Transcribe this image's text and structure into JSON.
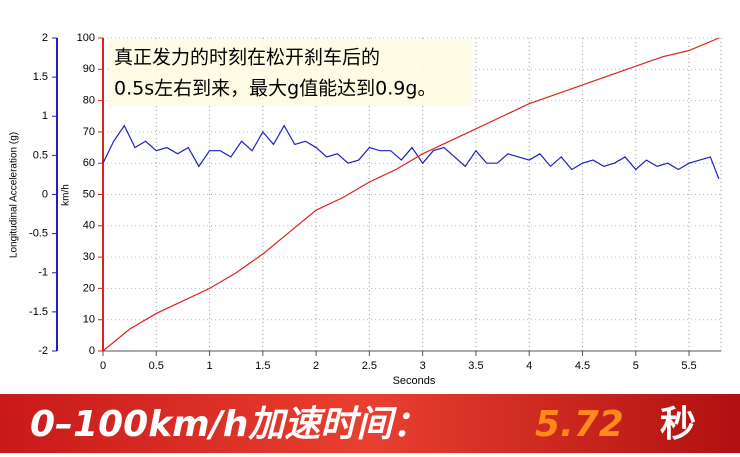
{
  "chart_data": {
    "type": "line",
    "x_label": "Seconds",
    "y_label": "Longitudinal Acceleration (g)",
    "y2_label": "km/h",
    "xlim": [
      0,
      5.8
    ],
    "xticks": [
      0,
      0.5,
      1,
      1.5,
      2,
      2.5,
      3,
      3.5,
      4,
      4.5,
      5,
      5.5
    ],
    "ylim": [
      -2,
      2
    ],
    "yticks": [
      -2,
      -1.5,
      -1,
      -0.5,
      0,
      0.5,
      1,
      1.5,
      2
    ],
    "y2lim": [
      0,
      100
    ],
    "y2ticks": [
      0,
      10,
      20,
      30,
      40,
      50,
      60,
      70,
      80,
      90,
      100
    ],
    "grid": true,
    "series": [
      {
        "color": "#2020c0",
        "axis": "y",
        "x": [
          0,
          0.1,
          0.2,
          0.3,
          0.4,
          0.5,
          0.6,
          0.7,
          0.8,
          0.9,
          1,
          1.1,
          1.2,
          1.3,
          1.4,
          1.5,
          1.6,
          1.7,
          1.8,
          1.9,
          2,
          2.1,
          2.2,
          2.3,
          2.4,
          2.5,
          2.6,
          2.7,
          2.8,
          2.9,
          3,
          3.1,
          3.2,
          3.3,
          3.4,
          3.5,
          3.6,
          3.7,
          3.8,
          3.9,
          4,
          4.1,
          4.2,
          4.3,
          4.4,
          4.5,
          4.6,
          4.7,
          4.8,
          4.9,
          5,
          5.1,
          5.2,
          5.3,
          5.4,
          5.5,
          5.6,
          5.7,
          5.78
        ],
        "values": [
          0.4,
          0.68,
          0.88,
          0.6,
          0.68,
          0.56,
          0.6,
          0.52,
          0.6,
          0.36,
          0.56,
          0.56,
          0.48,
          0.68,
          0.56,
          0.8,
          0.64,
          0.88,
          0.64,
          0.68,
          0.6,
          0.48,
          0.52,
          0.4,
          0.44,
          0.6,
          0.56,
          0.56,
          0.44,
          0.6,
          0.4,
          0.56,
          0.6,
          0.48,
          0.36,
          0.56,
          0.4,
          0.4,
          0.52,
          0.48,
          0.44,
          0.52,
          0.36,
          0.48,
          0.32,
          0.4,
          0.44,
          0.36,
          0.4,
          0.48,
          0.32,
          0.44,
          0.36,
          0.4,
          0.32,
          0.4,
          0.44,
          0.48,
          0.2
        ]
      },
      {
        "color": "#e02020",
        "axis": "y2",
        "x": [
          0,
          0.25,
          0.5,
          0.75,
          1,
          1.25,
          1.5,
          1.75,
          2,
          2.25,
          2.5,
          2.75,
          3,
          3.25,
          3.5,
          3.75,
          4,
          4.25,
          4.5,
          4.75,
          5,
          5.25,
          5.5,
          5.78
        ],
        "values": [
          0,
          7,
          12,
          16,
          20,
          25,
          31,
          38,
          45,
          49,
          54,
          58,
          63,
          67,
          71,
          75,
          79,
          82,
          85,
          88,
          91,
          94,
          96,
          100
        ]
      }
    ],
    "annotation": [
      "真正发力的时刻在松开刹车后的",
      "0.5s左右到来，最大g值能达到0.9g。"
    ]
  },
  "banner": {
    "label": "0–100km/h加速时间：",
    "value": 5.72,
    "unit": "秒"
  }
}
